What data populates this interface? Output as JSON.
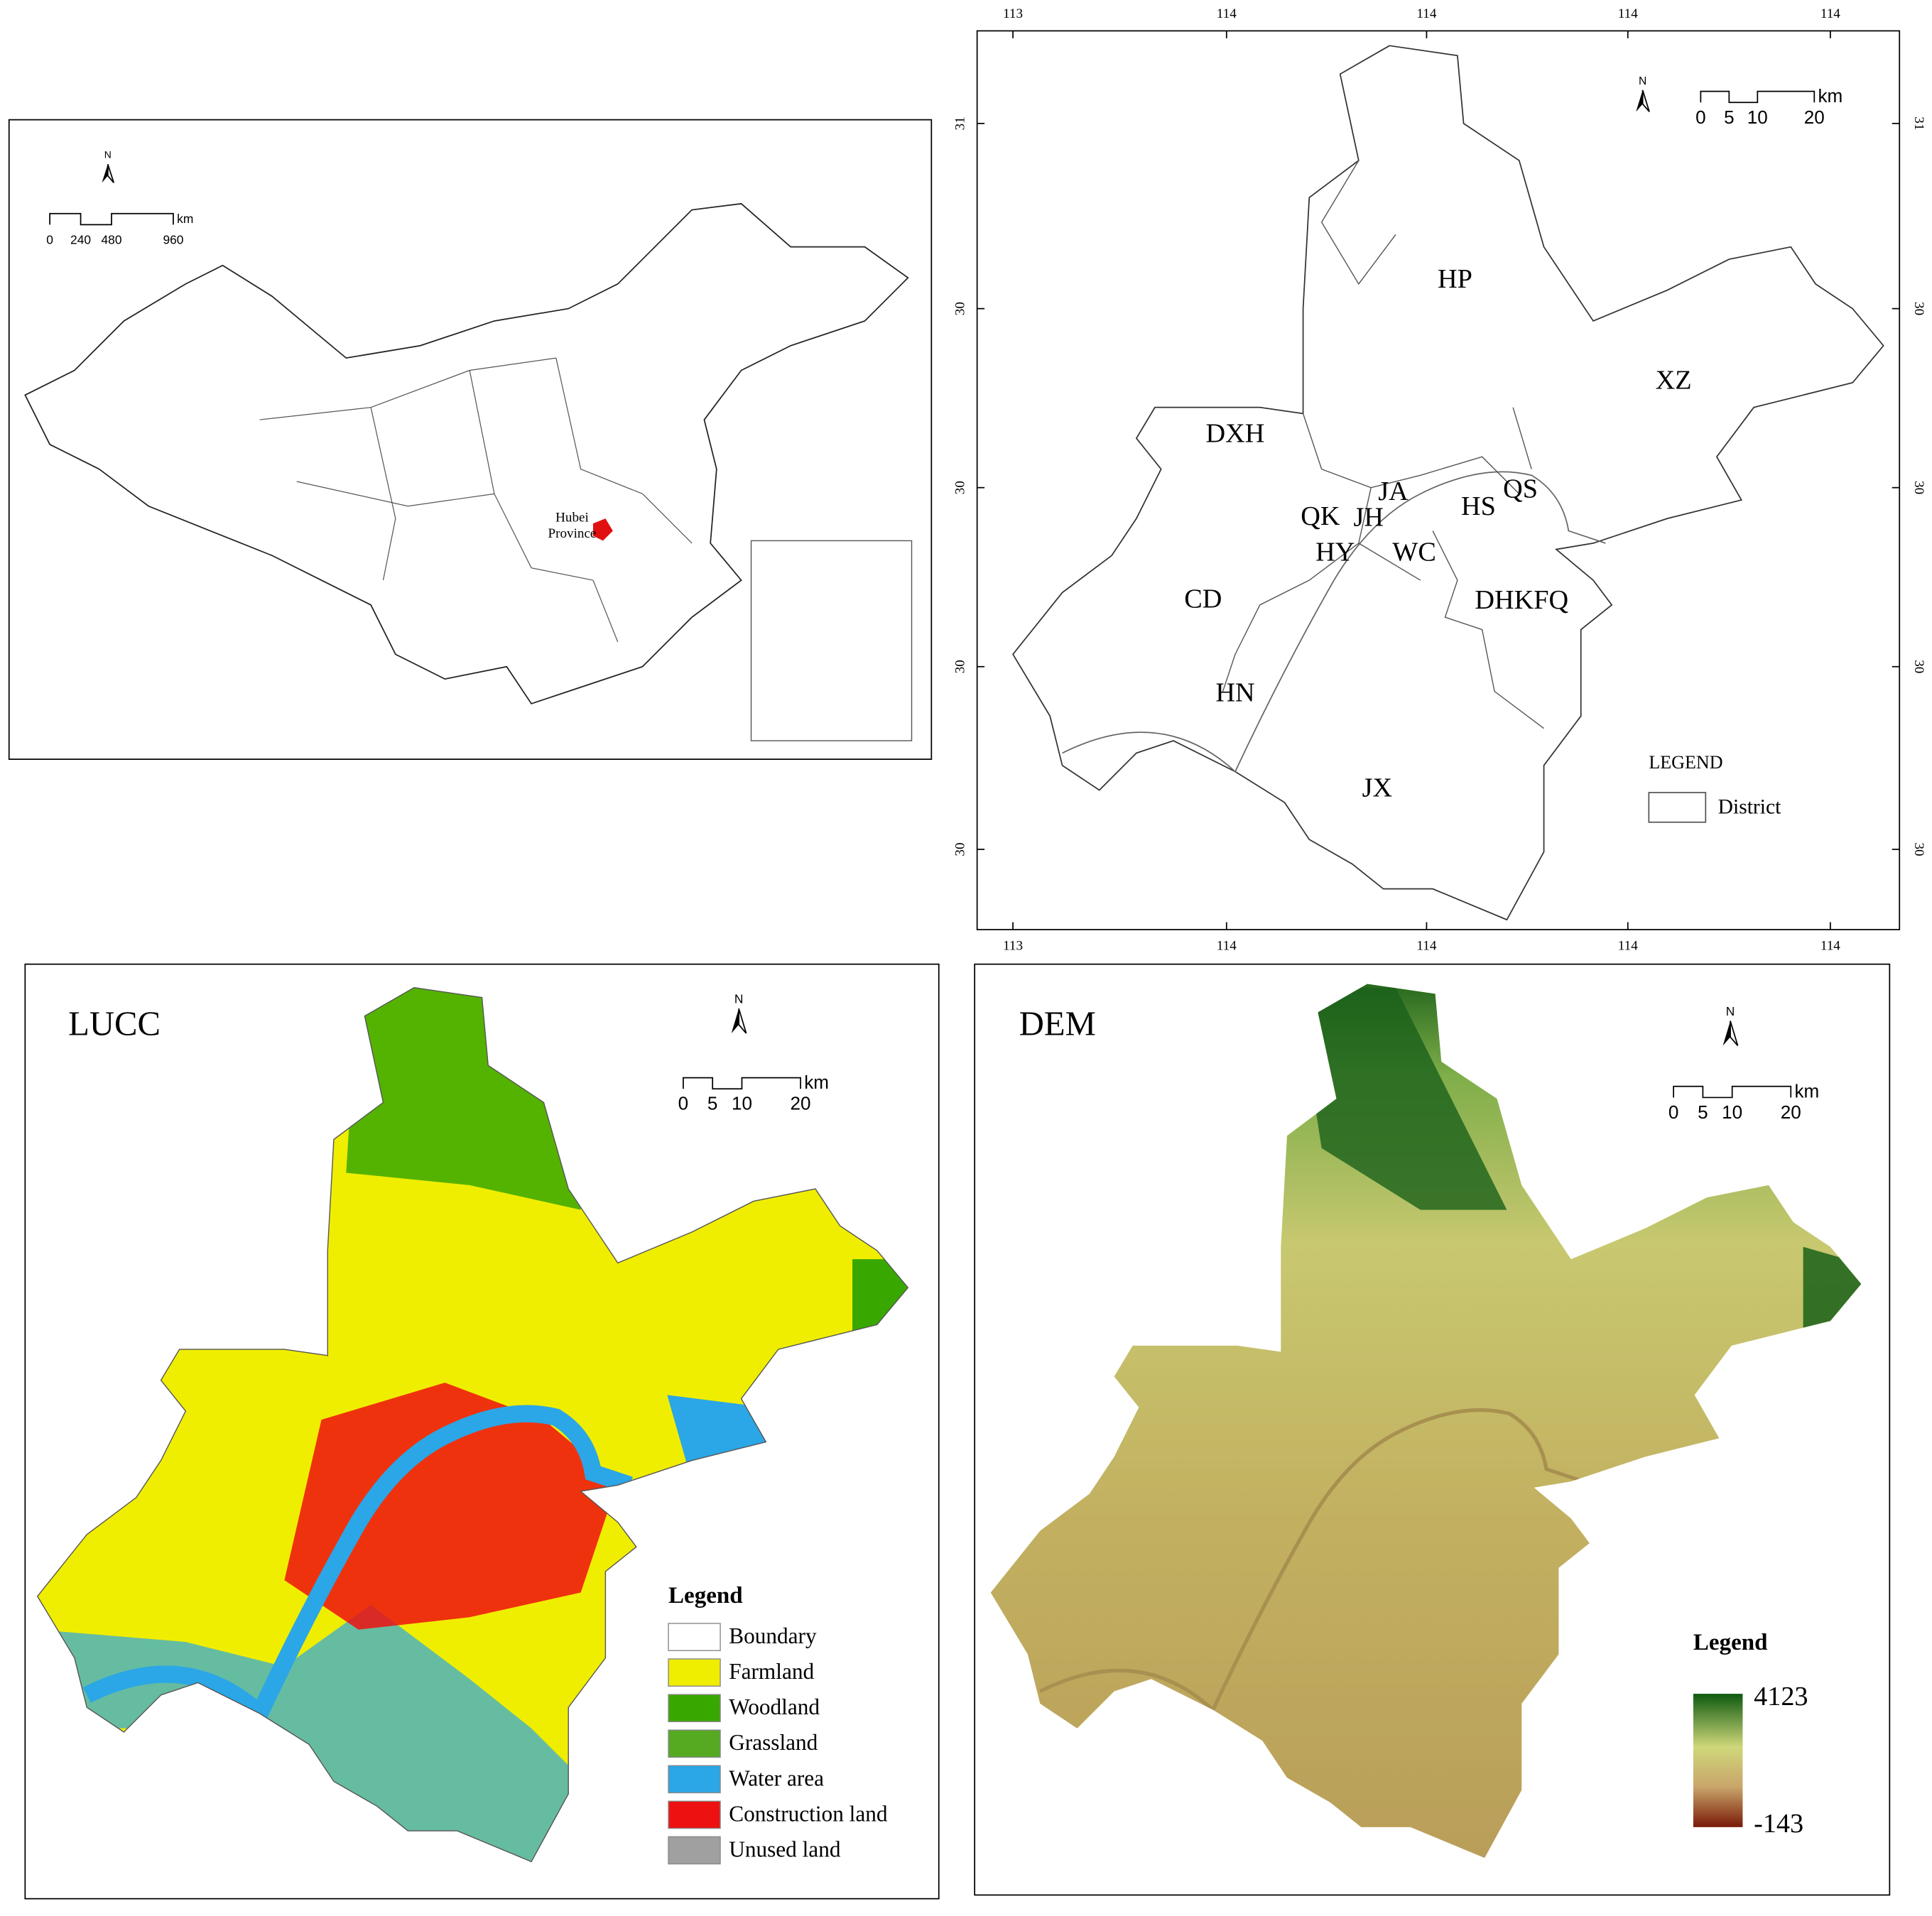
{
  "china_map": {
    "north": "N",
    "scale_labels": [
      0,
      240,
      480,
      960
    ],
    "scale_unit": "km",
    "province_label": [
      "Hubei",
      "Province"
    ]
  },
  "district_map": {
    "north": "N",
    "scale_labels": [
      0,
      5,
      10,
      20
    ],
    "scale_unit": "km",
    "top_ticks": [
      "113",
      "114",
      "114",
      "114",
      "114"
    ],
    "bottom_ticks": [
      "113",
      "114",
      "114",
      "114",
      "114"
    ],
    "left_ticks": [
      "31",
      "30",
      "30",
      "30",
      "30"
    ],
    "right_ticks": [
      "31",
      "30",
      "30",
      "30",
      "30"
    ],
    "districts": [
      "HP",
      "XZ",
      "DXH",
      "JA",
      "HS",
      "QS",
      "QK",
      "JH",
      "HY",
      "WC",
      "CD",
      "DHKFQ",
      "HN",
      "JX"
    ],
    "legend_title": "LEGEND",
    "legend_item": "District"
  },
  "lucc_map": {
    "title": "LUCC",
    "north": "N",
    "scale_labels": [
      0,
      5,
      10,
      20
    ],
    "scale_unit": "km",
    "legend_title": "Legend",
    "legend": [
      {
        "label": "Boundary",
        "color": "#ffffff"
      },
      {
        "label": "Farmland",
        "color": "#f0ee00"
      },
      {
        "label": "Woodland",
        "color": "#38a800"
      },
      {
        "label": "Grassland",
        "color": "#55aa22"
      },
      {
        "label": "Water area",
        "color": "#2ba6e6"
      },
      {
        "label": "Construction land",
        "color": "#ee1111"
      },
      {
        "label": "Unused land",
        "color": "#a0a0a0"
      }
    ]
  },
  "dem_map": {
    "title": "DEM",
    "north": "N",
    "scale_labels": [
      0,
      5,
      10,
      20
    ],
    "scale_unit": "km",
    "legend_title": "Legend",
    "legend_max": 4123,
    "legend_min": -143
  }
}
